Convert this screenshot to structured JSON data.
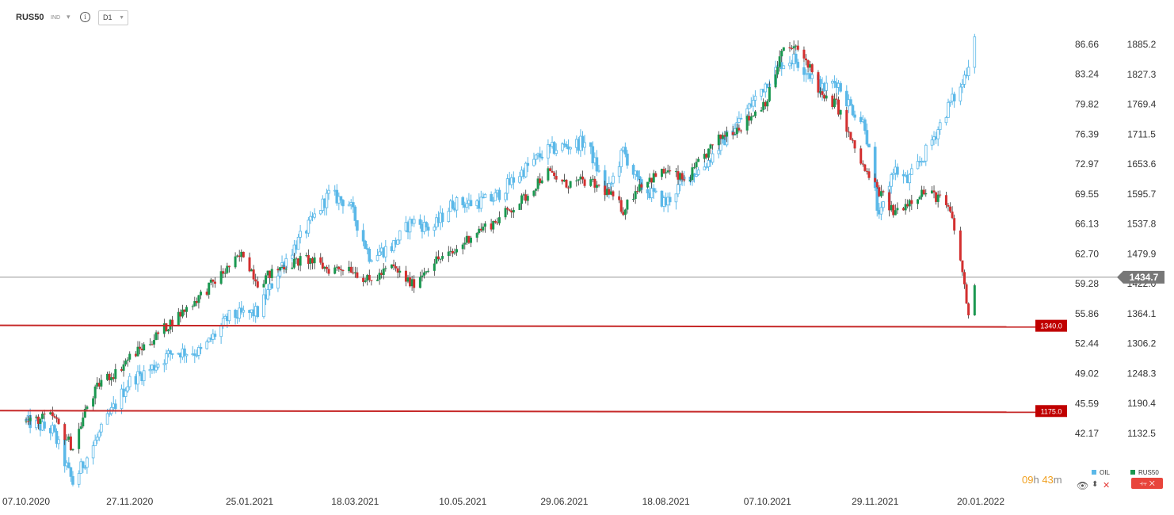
{
  "header": {
    "symbol": "RUS50",
    "symbol_type": "IND",
    "timeframe": "D1"
  },
  "timer": {
    "hours": "09",
    "h_unit": "h",
    "minutes": "43",
    "m_unit": "m"
  },
  "legend": [
    {
      "name": "OIL",
      "color": "#5bb8e8"
    },
    {
      "name": "RUS50",
      "color": "#1a9850"
    }
  ],
  "colors": {
    "up": "#1a9850",
    "down": "#d32f2f",
    "oil": "#5bb8e8",
    "level": "#c62828",
    "current": "#888888"
  },
  "chart_data": {
    "type": "candlestick",
    "series": [
      {
        "name": "RUS50",
        "kind": "candlestick",
        "axis": "right"
      },
      {
        "name": "OIL",
        "kind": "candlestick",
        "axis": "left"
      }
    ],
    "x_dates": [
      "2020-10-07",
      "2022-01-20"
    ],
    "x_ticks": [
      "07.10.2020",
      "27.11.2020",
      "25.01.2021",
      "18.03.2021",
      "10.05.2021",
      "29.06.2021",
      "18.08.2021",
      "07.10.2021",
      "29.11.2021",
      "20.01.2022"
    ],
    "left_axis_ticks": [
      86.66,
      83.24,
      79.82,
      76.39,
      72.97,
      69.55,
      66.13,
      62.7,
      59.28,
      55.86,
      52.44,
      49.02,
      45.59,
      42.17
    ],
    "left_axis_labels": [
      "86.66",
      "83.24",
      "79.82",
      "76.39",
      "72.97",
      "69.55",
      "66.13",
      "62.70",
      "59.28",
      "55.86",
      "52.44",
      "49.02",
      "45.59",
      "42.17"
    ],
    "right_axis_ticks": [
      1885.2,
      1827.3,
      1769.4,
      1711.5,
      1653.6,
      1595.7,
      1537.8,
      1479.9,
      1422.0,
      1364.1,
      1306.2,
      1248.3,
      1190.4,
      1132.5
    ],
    "right_axis_labels": [
      "1885.2",
      "1827.3",
      "1769.4",
      "1711.5",
      "1653.6",
      "1595.7",
      "1537.8",
      "1479.9",
      "1422.0",
      "1364.1",
      "1306.2",
      "1248.3",
      "1190.4",
      "1132.5"
    ],
    "current_price": 1434.7,
    "current_price_label": "1434.7",
    "levels": [
      {
        "value": 1340.0,
        "label": "1340.0"
      },
      {
        "value": 1175.0,
        "label": "1175.0"
      }
    ],
    "rus50_path": [
      [
        "2020-10-07",
        1155
      ],
      [
        "2020-10-20",
        1165
      ],
      [
        "2020-10-30",
        1105
      ],
      [
        "2020-11-06",
        1185
      ],
      [
        "2020-11-13",
        1235
      ],
      [
        "2020-11-20",
        1250
      ],
      [
        "2020-11-27",
        1280
      ],
      [
        "2020-12-07",
        1310
      ],
      [
        "2020-12-18",
        1350
      ],
      [
        "2021-01-01",
        1400
      ],
      [
        "2021-01-15",
        1455
      ],
      [
        "2021-01-22",
        1480
      ],
      [
        "2021-01-29",
        1425
      ],
      [
        "2021-02-10",
        1455
      ],
      [
        "2021-02-22",
        1470
      ],
      [
        "2021-03-05",
        1450
      ],
      [
        "2021-03-15",
        1455
      ],
      [
        "2021-03-25",
        1425
      ],
      [
        "2021-04-05",
        1455
      ],
      [
        "2021-04-15",
        1420
      ],
      [
        "2021-04-25",
        1465
      ],
      [
        "2021-05-05",
        1480
      ],
      [
        "2021-05-15",
        1520
      ],
      [
        "2021-05-25",
        1540
      ],
      [
        "2021-06-10",
        1590
      ],
      [
        "2021-06-20",
        1640
      ],
      [
        "2021-06-29",
        1615
      ],
      [
        "2021-07-10",
        1620
      ],
      [
        "2021-07-20",
        1600
      ],
      [
        "2021-07-28",
        1565
      ],
      [
        "2021-08-05",
        1615
      ],
      [
        "2021-08-18",
        1640
      ],
      [
        "2021-08-28",
        1620
      ],
      [
        "2021-09-05",
        1665
      ],
      [
        "2021-09-15",
        1710
      ],
      [
        "2021-09-25",
        1730
      ],
      [
        "2021-10-07",
        1780
      ],
      [
        "2021-10-14",
        1870
      ],
      [
        "2021-10-20",
        1880
      ],
      [
        "2021-10-27",
        1850
      ],
      [
        "2021-11-03",
        1780
      ],
      [
        "2021-11-10",
        1770
      ],
      [
        "2021-11-17",
        1700
      ],
      [
        "2021-11-24",
        1640
      ],
      [
        "2021-12-01",
        1600
      ],
      [
        "2021-12-08",
        1560
      ],
      [
        "2021-12-15",
        1580
      ],
      [
        "2021-12-22",
        1600
      ],
      [
        "2021-12-30",
        1590
      ],
      [
        "2022-01-05",
        1560
      ],
      [
        "2022-01-10",
        1470
      ],
      [
        "2022-01-14",
        1360
      ],
      [
        "2022-01-17",
        1425
      ]
    ],
    "oil_path": [
      [
        "2020-10-07",
        43.5
      ],
      [
        "2020-10-20",
        42.5
      ],
      [
        "2020-10-30",
        36.5
      ],
      [
        "2020-11-06",
        39.5
      ],
      [
        "2020-11-13",
        42.5
      ],
      [
        "2020-11-20",
        45.5
      ],
      [
        "2020-11-27",
        48.2
      ],
      [
        "2020-12-07",
        49.5
      ],
      [
        "2020-12-18",
        51.5
      ],
      [
        "2021-01-01",
        51.5
      ],
      [
        "2021-01-15",
        55.5
      ],
      [
        "2021-01-22",
        55.8
      ],
      [
        "2021-01-29",
        56.0
      ],
      [
        "2021-02-10",
        61.5
      ],
      [
        "2021-02-22",
        65.5
      ],
      [
        "2021-03-05",
        69.5
      ],
      [
        "2021-03-15",
        68.5
      ],
      [
        "2021-03-25",
        62.5
      ],
      [
        "2021-04-05",
        63.5
      ],
      [
        "2021-04-15",
        66.5
      ],
      [
        "2021-04-25",
        65.5
      ],
      [
        "2021-05-05",
        68.5
      ],
      [
        "2021-05-15",
        68.5
      ],
      [
        "2021-05-25",
        69.0
      ],
      [
        "2021-06-10",
        72.5
      ],
      [
        "2021-06-20",
        74.5
      ],
      [
        "2021-06-29",
        75.0
      ],
      [
        "2021-07-10",
        75.5
      ],
      [
        "2021-07-20",
        69.5
      ],
      [
        "2021-07-28",
        74.5
      ],
      [
        "2021-08-05",
        70.5
      ],
      [
        "2021-08-18",
        68.5
      ],
      [
        "2021-08-28",
        71.5
      ],
      [
        "2021-09-05",
        72.5
      ],
      [
        "2021-09-15",
        75.5
      ],
      [
        "2021-09-25",
        78.5
      ],
      [
        "2021-10-07",
        82.5
      ],
      [
        "2021-10-14",
        84.5
      ],
      [
        "2021-10-20",
        85.0
      ],
      [
        "2021-10-27",
        83.5
      ],
      [
        "2021-11-03",
        81.5
      ],
      [
        "2021-11-10",
        82.5
      ],
      [
        "2021-11-17",
        79.5
      ],
      [
        "2021-11-24",
        77.5
      ],
      [
        "2021-12-01",
        66.5
      ],
      [
        "2021-12-08",
        72.5
      ],
      [
        "2021-12-15",
        71.0
      ],
      [
        "2021-12-22",
        73.5
      ],
      [
        "2021-12-30",
        77.0
      ],
      [
        "2022-01-05",
        80.0
      ],
      [
        "2022-01-10",
        81.5
      ],
      [
        "2022-01-14",
        84.5
      ],
      [
        "2022-01-17",
        88.0
      ]
    ]
  }
}
